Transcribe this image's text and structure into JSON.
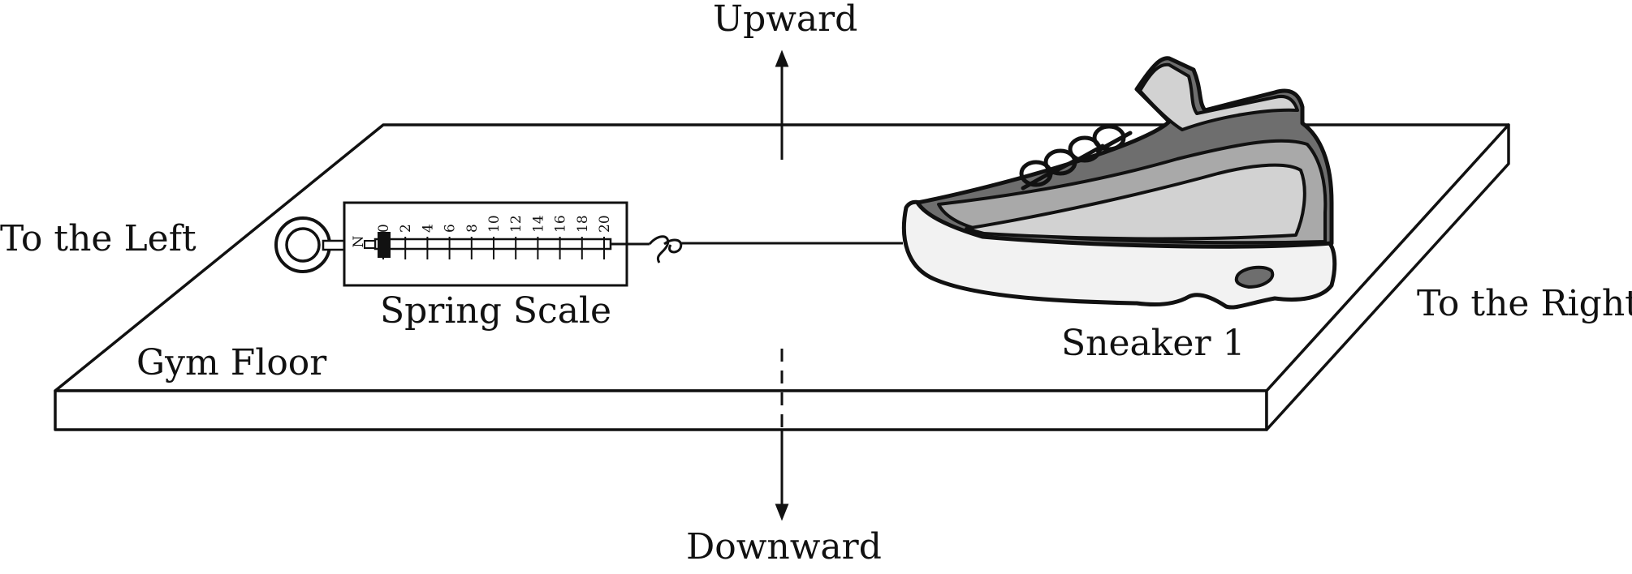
{
  "labels": {
    "upward": "Upward",
    "downward": "Downward",
    "to_the_left": "To the Left",
    "to_the_right": "To the Right",
    "spring_scale": "Spring Scale",
    "gym_floor": "Gym Floor",
    "sneaker": "Sneaker 1"
  },
  "scale": {
    "unit": "N",
    "ticks": [
      "0",
      "2",
      "4",
      "6",
      "8",
      "10",
      "12",
      "14",
      "16",
      "18",
      "20"
    ]
  },
  "colors": {
    "ink": "#111111",
    "shoe_dark": "#6e6e6e",
    "shoe_mid": "#a9a9a9",
    "shoe_light": "#d2d2d2",
    "shoe_white": "#f2f2f2"
  }
}
